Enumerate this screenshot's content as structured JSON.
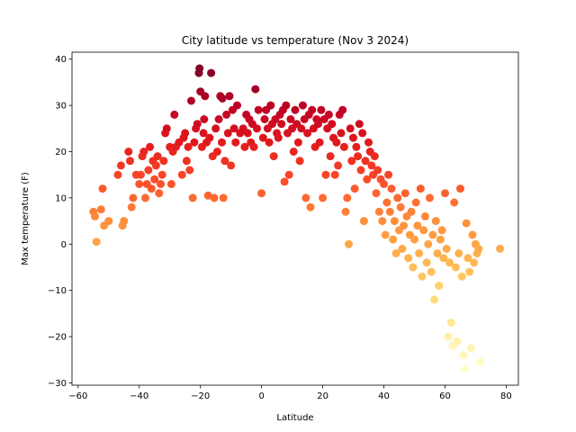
{
  "chart_data": {
    "type": "scatter",
    "title": "City latitude vs temperature (Nov 3 2024)",
    "xlabel": "Latitude",
    "ylabel": "Max temperature (F)",
    "xlim": [
      -62,
      84
    ],
    "ylim": [
      -30.5,
      41.5
    ],
    "xticks": [
      -60,
      -40,
      -20,
      0,
      20,
      40,
      60,
      80
    ],
    "yticks": [
      -30,
      -20,
      -10,
      0,
      10,
      20,
      30,
      40
    ],
    "grid": false,
    "colormap": "YlOrRd",
    "color_by": "y",
    "points": [
      [
        -55,
        7
      ],
      [
        -54.5,
        6
      ],
      [
        -54,
        0.5
      ],
      [
        -52.5,
        7.5
      ],
      [
        -52,
        12
      ],
      [
        -51.5,
        4
      ],
      [
        -50,
        5
      ],
      [
        -47,
        15
      ],
      [
        -46,
        17
      ],
      [
        -45.5,
        4
      ],
      [
        -45,
        5
      ],
      [
        -43.5,
        20
      ],
      [
        -43,
        18
      ],
      [
        -42.5,
        8
      ],
      [
        -42,
        10
      ],
      [
        -41,
        15
      ],
      [
        -40,
        13
      ],
      [
        -39.5,
        15
      ],
      [
        -39,
        19
      ],
      [
        -38.5,
        20
      ],
      [
        -38,
        10
      ],
      [
        -37.5,
        13
      ],
      [
        -37,
        16
      ],
      [
        -36.5,
        21
      ],
      [
        -36,
        12
      ],
      [
        -35.5,
        18
      ],
      [
        -35,
        14
      ],
      [
        -34.5,
        17
      ],
      [
        -34,
        19
      ],
      [
        -33.5,
        11
      ],
      [
        -33,
        13
      ],
      [
        -32.5,
        15
      ],
      [
        -32,
        18
      ],
      [
        -31.5,
        24
      ],
      [
        -31,
        25
      ],
      [
        -30,
        21
      ],
      [
        -29.5,
        13
      ],
      [
        -29,
        20
      ],
      [
        -28.5,
        28
      ],
      [
        -28,
        21
      ],
      [
        -27,
        22
      ],
      [
        -26,
        15
      ],
      [
        -25.5,
        23
      ],
      [
        -25,
        24
      ],
      [
        -24.5,
        18
      ],
      [
        -24,
        21
      ],
      [
        -23.5,
        16
      ],
      [
        -23,
        31
      ],
      [
        -22.5,
        10
      ],
      [
        -22,
        22
      ],
      [
        -21.5,
        25
      ],
      [
        -21,
        26
      ],
      [
        -20.5,
        37
      ],
      [
        -20.3,
        38
      ],
      [
        -20,
        33
      ],
      [
        -19.5,
        21
      ],
      [
        -19,
        24
      ],
      [
        -18.8,
        27
      ],
      [
        -18.5,
        32
      ],
      [
        -18,
        22
      ],
      [
        -17.5,
        10.5
      ],
      [
        -17,
        23
      ],
      [
        -16.5,
        37
      ],
      [
        -16,
        19
      ],
      [
        -15.5,
        10
      ],
      [
        -15,
        25
      ],
      [
        -14.5,
        20
      ],
      [
        -14,
        27
      ],
      [
        -13.5,
        32
      ],
      [
        -13,
        22
      ],
      [
        -12.8,
        31.5
      ],
      [
        -12.5,
        10
      ],
      [
        -12,
        18
      ],
      [
        -11.5,
        28
      ],
      [
        -11,
        24
      ],
      [
        -10.5,
        32
      ],
      [
        -10,
        17
      ],
      [
        -9.5,
        29
      ],
      [
        -9,
        25
      ],
      [
        -8.5,
        22
      ],
      [
        -8,
        30
      ],
      [
        -7,
        24
      ],
      [
        -6,
        25
      ],
      [
        -5.5,
        21
      ],
      [
        -5,
        28
      ],
      [
        -4.5,
        24
      ],
      [
        -4,
        27
      ],
      [
        -3.5,
        22
      ],
      [
        -3,
        26
      ],
      [
        -2.5,
        21
      ],
      [
        -2,
        33.5
      ],
      [
        -1.5,
        25
      ],
      [
        -1,
        29
      ],
      [
        0,
        11
      ],
      [
        0.5,
        23
      ],
      [
        1,
        27
      ],
      [
        1.5,
        29
      ],
      [
        2,
        25
      ],
      [
        2.5,
        22
      ],
      [
        3,
        30
      ],
      [
        3.5,
        26
      ],
      [
        4,
        19
      ],
      [
        4.5,
        27
      ],
      [
        5,
        24
      ],
      [
        5.5,
        23
      ],
      [
        6,
        28
      ],
      [
        6.5,
        26
      ],
      [
        7,
        29
      ],
      [
        7.5,
        13.5
      ],
      [
        8,
        30
      ],
      [
        8.5,
        24
      ],
      [
        9,
        15
      ],
      [
        9.5,
        27
      ],
      [
        10,
        25
      ],
      [
        10.5,
        20
      ],
      [
        11,
        29
      ],
      [
        11.5,
        26
      ],
      [
        12,
        22
      ],
      [
        12.5,
        18
      ],
      [
        13,
        25
      ],
      [
        13.5,
        30
      ],
      [
        14,
        27
      ],
      [
        14.5,
        10
      ],
      [
        15,
        24
      ],
      [
        15.5,
        28
      ],
      [
        16,
        8
      ],
      [
        16.5,
        29
      ],
      [
        17,
        25
      ],
      [
        17.5,
        21
      ],
      [
        18,
        27
      ],
      [
        18.5,
        26
      ],
      [
        19,
        22
      ],
      [
        19.5,
        29
      ],
      [
        20,
        10
      ],
      [
        20.5,
        27
      ],
      [
        21,
        15
      ],
      [
        21.5,
        25
      ],
      [
        22,
        28
      ],
      [
        22.5,
        19
      ],
      [
        23,
        26
      ],
      [
        23.5,
        23
      ],
      [
        24,
        15
      ],
      [
        24.5,
        22
      ],
      [
        25,
        17
      ],
      [
        25.5,
        28
      ],
      [
        26,
        24
      ],
      [
        26.5,
        29
      ],
      [
        27,
        21
      ],
      [
        27.5,
        7
      ],
      [
        28,
        10
      ],
      [
        28.5,
        0
      ],
      [
        29,
        25
      ],
      [
        29.5,
        18
      ],
      [
        30,
        23
      ],
      [
        30.5,
        12
      ],
      [
        31,
        21
      ],
      [
        31.5,
        19
      ],
      [
        32,
        26
      ],
      [
        32.5,
        16
      ],
      [
        33,
        24
      ],
      [
        33.5,
        5
      ],
      [
        34,
        18
      ],
      [
        34.5,
        14
      ],
      [
        35,
        22
      ],
      [
        35.5,
        20
      ],
      [
        36,
        17
      ],
      [
        36.5,
        15
      ],
      [
        37,
        19
      ],
      [
        37.5,
        11
      ],
      [
        38,
        16
      ],
      [
        38.5,
        7
      ],
      [
        39,
        14
      ],
      [
        39.5,
        5
      ],
      [
        40,
        13
      ],
      [
        40.5,
        2
      ],
      [
        41,
        9
      ],
      [
        41.5,
        15
      ],
      [
        42,
        7
      ],
      [
        42.5,
        12
      ],
      [
        43,
        1
      ],
      [
        43.5,
        5
      ],
      [
        44,
        -2
      ],
      [
        44.5,
        10
      ],
      [
        45,
        3
      ],
      [
        45.5,
        8
      ],
      [
        46,
        -1
      ],
      [
        46.5,
        4
      ],
      [
        47,
        11
      ],
      [
        47.5,
        6
      ],
      [
        48,
        -3
      ],
      [
        48.5,
        2
      ],
      [
        49,
        7
      ],
      [
        49.5,
        -5
      ],
      [
        50,
        1
      ],
      [
        50.5,
        9
      ],
      [
        51,
        4
      ],
      [
        51.5,
        -2
      ],
      [
        52,
        12
      ],
      [
        52.5,
        -7
      ],
      [
        53,
        3
      ],
      [
        53.5,
        6
      ],
      [
        54,
        -4
      ],
      [
        54.5,
        0
      ],
      [
        55,
        10
      ],
      [
        55.5,
        -6
      ],
      [
        56,
        2
      ],
      [
        56.5,
        -12
      ],
      [
        57,
        5
      ],
      [
        57.5,
        -2
      ],
      [
        58,
        -9
      ],
      [
        58.5,
        1
      ],
      [
        59,
        3
      ],
      [
        59.5,
        -3
      ],
      [
        60,
        11
      ],
      [
        60.5,
        -1
      ],
      [
        61,
        -20
      ],
      [
        61.5,
        -4
      ],
      [
        62,
        -17
      ],
      [
        62.5,
        -22
      ],
      [
        63,
        9
      ],
      [
        63.5,
        -5
      ],
      [
        64,
        -21
      ],
      [
        64.5,
        -2
      ],
      [
        65,
        12
      ],
      [
        65.5,
        -7
      ],
      [
        66,
        -24
      ],
      [
        66.5,
        -27
      ],
      [
        67,
        4.5
      ],
      [
        67.5,
        -3
      ],
      [
        68,
        -6
      ],
      [
        68.5,
        -22.5
      ],
      [
        69,
        2
      ],
      [
        69.5,
        -4
      ],
      [
        70,
        0
      ],
      [
        70.5,
        -2
      ],
      [
        71,
        -1
      ],
      [
        71.5,
        -25.5
      ],
      [
        78,
        -1
      ]
    ]
  }
}
